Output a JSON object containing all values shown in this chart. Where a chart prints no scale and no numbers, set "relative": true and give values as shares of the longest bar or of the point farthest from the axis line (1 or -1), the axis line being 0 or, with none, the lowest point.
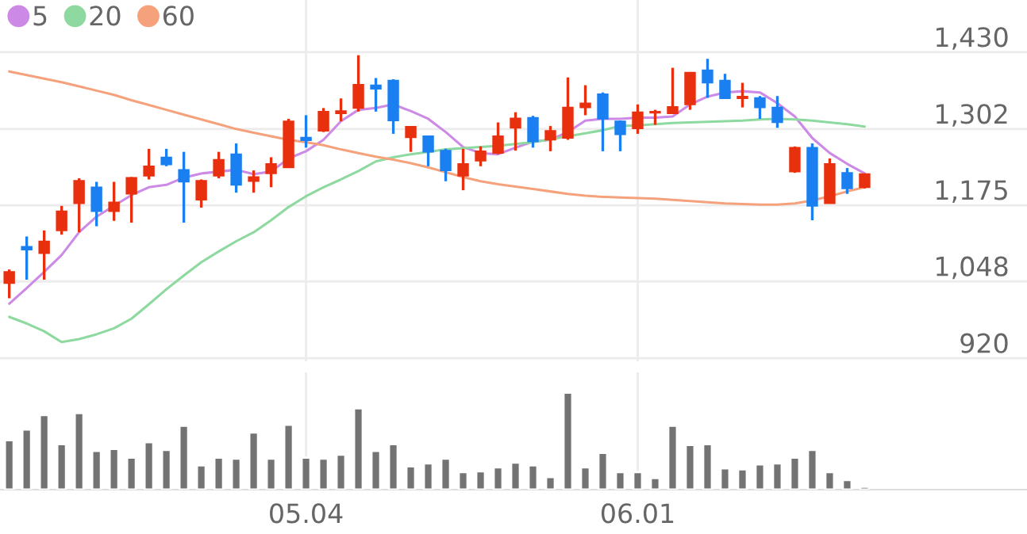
{
  "chart_data": [
    {
      "type": "candlestick",
      "categories": [
        null,
        null,
        null,
        null,
        null,
        null,
        null,
        null,
        null,
        null,
        null,
        null,
        null,
        null,
        null,
        null,
        null,
        "05.04",
        null,
        null,
        null,
        null,
        null,
        null,
        null,
        null,
        null,
        null,
        null,
        null,
        null,
        null,
        null,
        null,
        null,
        null,
        "06.01",
        null,
        null,
        null,
        null,
        null,
        null,
        null,
        null,
        null,
        null,
        null,
        null,
        null
      ],
      "ohlc": [
        [
          1045,
          1068,
          1020,
          1064
        ],
        [
          1106,
          1123,
          1051,
          1101
        ],
        [
          1095,
          1133,
          1051,
          1115
        ],
        [
          1133,
          1174,
          1126,
          1165
        ],
        [
          1178,
          1220,
          1130,
          1216
        ],
        [
          1205,
          1214,
          1140,
          1165
        ],
        [
          1165,
          1214,
          1149,
          1180
        ],
        [
          1194,
          1222,
          1146,
          1221
        ],
        [
          1224,
          1269,
          1218,
          1240
        ],
        [
          1255,
          1269,
          1240,
          1243
        ],
        [
          1234,
          1264,
          1146,
          1214
        ],
        [
          1184,
          1218,
          1171,
          1216
        ],
        [
          1224,
          1264,
          1220,
          1251
        ],
        [
          1260,
          1278,
          1196,
          1209
        ],
        [
          1215,
          1233,
          1196,
          1222
        ],
        [
          1228,
          1255,
          1205,
          1244
        ],
        [
          1238,
          1319,
          1238,
          1315
        ],
        [
          1288,
          1325,
          1271,
          1283
        ],
        [
          1299,
          1337,
          1297,
          1331
        ],
        [
          1328,
          1353,
          1315,
          1332
        ],
        [
          1337,
          1425,
          1331,
          1376
        ],
        [
          1375,
          1387,
          1331,
          1369
        ],
        [
          1383,
          1385,
          1294,
          1316
        ],
        [
          1288,
          1307,
          1264,
          1306
        ],
        [
          1290,
          1291,
          1240,
          1264
        ],
        [
          1266,
          1269,
          1215,
          1233
        ],
        [
          1224,
          1269,
          1200,
          1244
        ],
        [
          1249,
          1273,
          1240,
          1265
        ],
        [
          1262,
          1313,
          1260,
          1290
        ],
        [
          1304,
          1330,
          1266,
          1320
        ],
        [
          1321,
          1324,
          1271,
          1281
        ],
        [
          1284,
          1307,
          1265,
          1299
        ],
        [
          1287,
          1388,
          1284,
          1338
        ],
        [
          1338,
          1375,
          1325,
          1345
        ],
        [
          1360,
          1363,
          1265,
          1319
        ],
        [
          1315,
          1316,
          1265,
          1293
        ],
        [
          1303,
          1343,
          1294,
          1330
        ],
        [
          1329,
          1334,
          1309,
          1331
        ],
        [
          1328,
          1404,
          1328,
          1339
        ],
        [
          1343,
          1397,
          1334,
          1396
        ],
        [
          1400,
          1419,
          1354,
          1379
        ],
        [
          1383,
          1394,
          1352,
          1353
        ],
        [
          1353,
          1379,
          1338,
          1356
        ],
        [
          1354,
          1357,
          1319,
          1338
        ],
        [
          1338,
          1357,
          1304,
          1313
        ],
        [
          1231,
          1273,
          1229,
          1271
        ],
        [
          1271,
          1278,
          1150,
          1174
        ],
        [
          1178,
          1253,
          1178,
          1244
        ],
        [
          1229,
          1237,
          1194,
          1203
        ],
        [
          1205,
          1228,
          1203,
          1227
        ]
      ],
      "colors": [
        "#e8300f",
        "#1a7ff0",
        "#e8300f",
        "#e8300f",
        "#e8300f",
        "#1a7ff0",
        "#e8300f",
        "#e8300f",
        "#e8300f",
        "#1a7ff0",
        "#1a7ff0",
        "#e8300f",
        "#e8300f",
        "#1a7ff0",
        "#e8300f",
        "#e8300f",
        "#e8300f",
        "#1a7ff0",
        "#e8300f",
        "#e8300f",
        "#e8300f",
        "#1a7ff0",
        "#1a7ff0",
        "#e8300f",
        "#1a7ff0",
        "#1a7ff0",
        "#e8300f",
        "#e8300f",
        "#e8300f",
        "#e8300f",
        "#1a7ff0",
        "#e8300f",
        "#e8300f",
        "#e8300f",
        "#1a7ff0",
        "#1a7ff0",
        "#e8300f",
        "#e8300f",
        "#e8300f",
        "#e8300f",
        "#1a7ff0",
        "#1a7ff0",
        "#e8300f",
        "#1a7ff0",
        "#1a7ff0",
        "#e8300f",
        "#1a7ff0",
        "#e8300f",
        "#1a7ff0",
        "#e8300f"
      ],
      "series": [
        {
          "name": "5",
          "type": "line",
          "color": "#cc8ae6",
          "values": [
            1011,
            1037,
            1064,
            1092,
            1130,
            1156,
            1174,
            1192,
            1205,
            1209,
            1221,
            1228,
            1231,
            1234,
            1227,
            1231,
            1253,
            1265,
            1284,
            1315,
            1334,
            1337,
            1343,
            1332,
            1319,
            1297,
            1272,
            1262,
            1260,
            1271,
            1281,
            1284,
            1297,
            1316,
            1319,
            1319,
            1321,
            1321,
            1323,
            1343,
            1356,
            1363,
            1365,
            1363,
            1345,
            1323,
            1287,
            1262,
            1244,
            1228
          ]
        },
        {
          "name": "20",
          "type": "line",
          "color": "#8ed9a0",
          "values": [
            989,
            978,
            965,
            947,
            952,
            960,
            970,
            986,
            1010,
            1035,
            1058,
            1080,
            1098,
            1115,
            1130,
            1150,
            1172,
            1190,
            1205,
            1218,
            1232,
            1248,
            1255,
            1260,
            1264,
            1268,
            1270,
            1272,
            1274,
            1277,
            1280,
            1285,
            1290,
            1295,
            1300,
            1307,
            1308,
            1310,
            1312,
            1313,
            1314,
            1315,
            1316,
            1318,
            1319,
            1318,
            1316,
            1313,
            1310,
            1306
          ]
        },
        {
          "name": "60",
          "type": "line",
          "color": "#f5a27c",
          "values": [
            1398,
            1392,
            1386,
            1380,
            1373,
            1366,
            1359,
            1350,
            1342,
            1334,
            1326,
            1318,
            1310,
            1302,
            1296,
            1290,
            1284,
            1280,
            1275,
            1268,
            1262,
            1256,
            1251,
            1245,
            1238,
            1230,
            1222,
            1215,
            1210,
            1206,
            1202,
            1198,
            1194,
            1191,
            1189,
            1188,
            1187,
            1186,
            1184,
            1182,
            1180,
            1178,
            1177,
            1176,
            1176,
            1178,
            1183,
            1190,
            1198,
            1205
          ]
        }
      ],
      "ylim": [
        915,
        1517
      ],
      "yticks": [
        {
          "value": 920,
          "label": "920"
        },
        {
          "value": 1048,
          "label": "1,048"
        },
        {
          "value": 1175,
          "label": "1,175"
        },
        {
          "value": 1302,
          "label": "1,302"
        },
        {
          "value": 1430,
          "label": "1,430"
        }
      ],
      "grid": true,
      "legend": "top left",
      "tick_labels": "y"
    },
    {
      "type": "bar",
      "relative": true,
      "color": "#737373",
      "grid": "x",
      "tick_labels": "x",
      "categories": [
        null,
        null,
        null,
        null,
        null,
        null,
        null,
        null,
        null,
        null,
        null,
        null,
        null,
        null,
        null,
        null,
        null,
        "05.04",
        null,
        null,
        null,
        null,
        null,
        null,
        null,
        null,
        null,
        null,
        null,
        null,
        null,
        null,
        null,
        null,
        null,
        null,
        "06.01",
        null,
        null,
        null,
        null,
        null,
        null,
        null,
        null,
        null,
        null,
        null,
        null,
        null
      ],
      "values": [
        0.51,
        0.62,
        0.77,
        0.47,
        0.79,
        0.4,
        0.42,
        0.33,
        0.49,
        0.41,
        0.66,
        0.25,
        0.33,
        0.32,
        0.59,
        0.32,
        0.67,
        0.33,
        0.32,
        0.36,
        0.84,
        0.4,
        0.47,
        0.24,
        0.27,
        0.32,
        0.18,
        0.19,
        0.23,
        0.28,
        0.25,
        0.13,
        1.0,
        0.23,
        0.38,
        0.18,
        0.18,
        0.12,
        0.66,
        0.46,
        0.47,
        0.22,
        0.21,
        0.26,
        0.27,
        0.33,
        0.41,
        0.18,
        0.1,
        0.03
      ]
    }
  ]
}
